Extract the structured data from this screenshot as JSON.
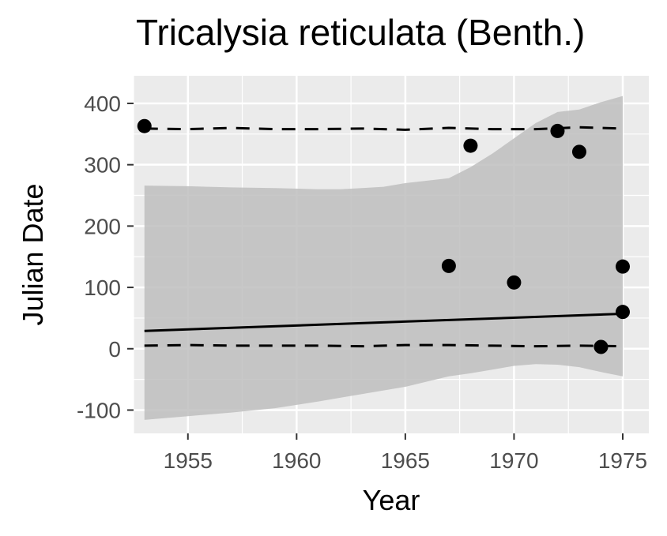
{
  "chart_data": {
    "type": "scatter",
    "title": "Tricalysia reticulata (Benth.)",
    "xlabel": "Year",
    "ylabel": "Julian Date",
    "xlim": [
      1952.5,
      1976.2
    ],
    "ylim": [
      -138,
      445
    ],
    "xticks": [
      1955,
      1960,
      1965,
      1970,
      1975
    ],
    "yticks": [
      -100,
      0,
      100,
      200,
      300,
      400
    ],
    "ytick_labels": [
      "-100",
      "0",
      "100",
      "200",
      "300",
      "400"
    ],
    "grid": true,
    "points": [
      {
        "x": 1953,
        "y": 363
      },
      {
        "x": 1967,
        "y": 135
      },
      {
        "x": 1968,
        "y": 331
      },
      {
        "x": 1970,
        "y": 108
      },
      {
        "x": 1972,
        "y": 355
      },
      {
        "x": 1973,
        "y": 321
      },
      {
        "x": 1974,
        "y": 3
      },
      {
        "x": 1975,
        "y": 134
      },
      {
        "x": 1975,
        "y": 60
      }
    ],
    "fit_line": {
      "x": [
        1953,
        1975
      ],
      "y": [
        29,
        57
      ]
    },
    "upper_dashed": {
      "x": [
        1953,
        1955,
        1957,
        1959,
        1961,
        1963,
        1965,
        1967,
        1969,
        1971,
        1973,
        1975
      ],
      "y": [
        359,
        358,
        360,
        358,
        358,
        359,
        357,
        360,
        358,
        358,
        361,
        359
      ]
    },
    "lower_dashed": {
      "x": [
        1953,
        1955,
        1957,
        1959,
        1961,
        1963,
        1965,
        1967,
        1969,
        1971,
        1973,
        1975
      ],
      "y": [
        5,
        6,
        5,
        5,
        5,
        4,
        6,
        6,
        5,
        4,
        5,
        4
      ]
    },
    "ribbon": {
      "x": [
        1953,
        1955,
        1957,
        1959,
        1961,
        1962,
        1963,
        1964,
        1965,
        1967,
        1968,
        1969,
        1970,
        1971,
        1972,
        1973,
        1974,
        1975
      ],
      "upper": [
        266,
        265,
        263,
        262,
        260,
        260,
        262,
        264,
        270,
        278,
        296,
        318,
        343,
        368,
        386,
        390,
        402,
        412
      ],
      "lower": [
        -116,
        -110,
        -104,
        -97,
        -86,
        -80,
        -74,
        -68,
        -62,
        -45,
        -40,
        -34,
        -28,
        -25,
        -26,
        -30,
        -38,
        -45
      ]
    },
    "colors": {
      "panel": "#ebebeb",
      "grid_major": "#ffffff",
      "ribbon": "#bebebe",
      "points": "#000000",
      "line": "#000000"
    }
  }
}
